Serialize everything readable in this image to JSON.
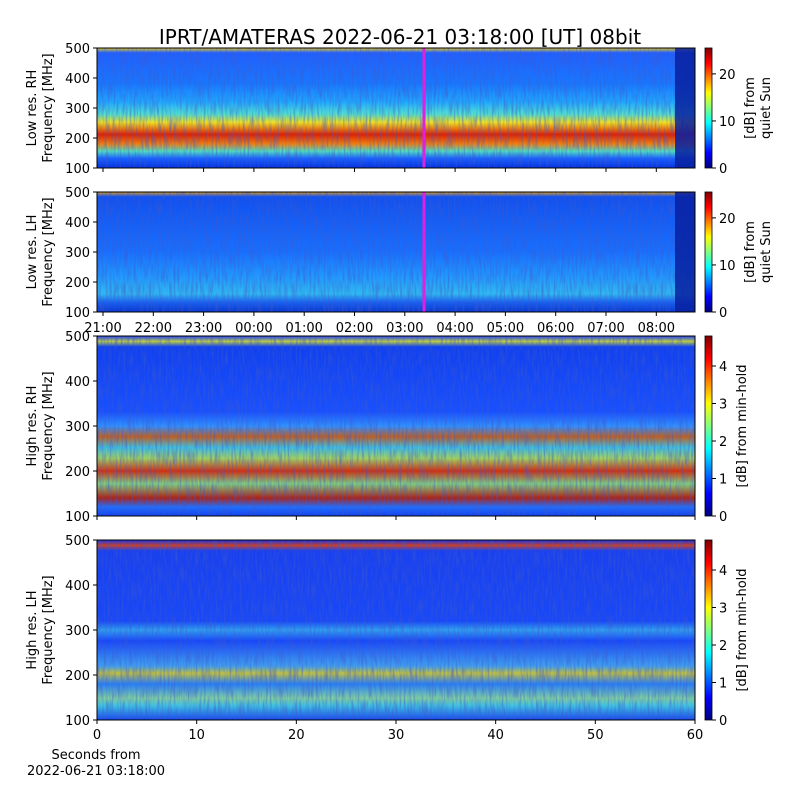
{
  "chart_data": [
    {
      "type": "heatmap",
      "title": "IPRT/AMATERAS 2022-06-21 03:18:00 [UT]   08bit",
      "ylabel": [
        "Low res. RH",
        "Frequency [MHz]"
      ],
      "ylim": [
        100,
        500
      ],
      "yticks": [
        100,
        200,
        300,
        400,
        500
      ],
      "colorbar": {
        "label": [
          "[dB] from",
          "quiet Sun"
        ],
        "clim": [
          0,
          25.5
        ],
        "ticks": [
          0,
          10,
          20
        ]
      }
    },
    {
      "type": "heatmap",
      "ylabel": [
        "Low res. LH",
        "Frequency [MHz]"
      ],
      "ylim": [
        100,
        500
      ],
      "yticks": [
        100,
        200,
        300,
        400,
        500
      ],
      "xtick_labels": [
        "21:00",
        "22:00",
        "23:00",
        "00:00",
        "01:00",
        "02:00",
        "03:00",
        "04:00",
        "05:00",
        "06:00",
        "07:00",
        "08:00"
      ],
      "colorbar": {
        "label": [
          "[dB] from",
          "quiet Sun"
        ],
        "clim": [
          0,
          25.5
        ],
        "ticks": [
          0,
          10,
          20
        ]
      }
    },
    {
      "type": "heatmap",
      "ylabel": [
        "High res. RH",
        "Frequency [MHz]"
      ],
      "ylim": [
        100,
        500
      ],
      "yticks": [
        100,
        200,
        300,
        400,
        500
      ],
      "xlim": [
        0,
        60
      ],
      "xticks": [
        0,
        10,
        20,
        30,
        40,
        50,
        60
      ],
      "colorbar": {
        "label": [
          "[dB] from min-hold"
        ],
        "clim": [
          0,
          4.8
        ],
        "ticks": [
          0,
          1,
          2,
          3,
          4
        ]
      }
    },
    {
      "type": "heatmap",
      "ylabel": [
        "High res. LH",
        "Frequency [MHz]"
      ],
      "ylim": [
        100,
        500
      ],
      "yticks": [
        100,
        200,
        300,
        400,
        500
      ],
      "xlim": [
        0,
        60
      ],
      "xticks": [
        0,
        10,
        20,
        30,
        40,
        50,
        60
      ],
      "xlabel": [
        "Seconds from",
        "2022-06-21 03:18:00"
      ],
      "colorbar": {
        "label": [
          "[dB] from min-hold"
        ],
        "clim": [
          0,
          4.8
        ],
        "ticks": [
          0,
          1,
          2,
          3,
          4
        ]
      }
    }
  ]
}
